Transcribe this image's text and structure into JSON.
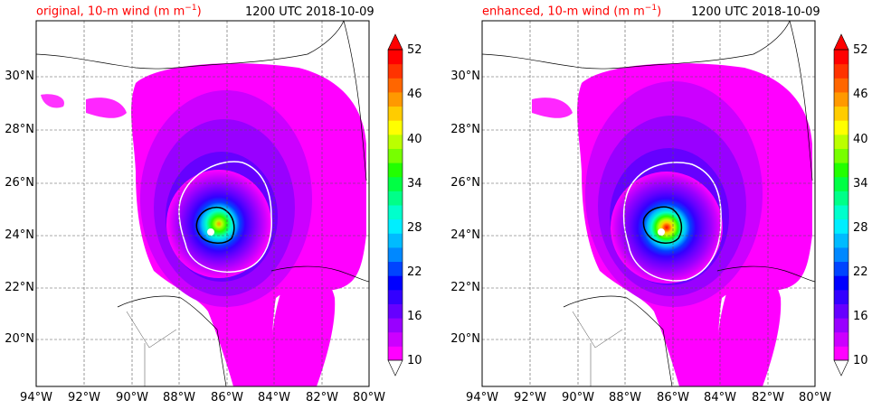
{
  "panels": [
    {
      "title": "original, 10-m wind (m m",
      "title_sup": "−1",
      "title_close": ")",
      "time": "1200 UTC 2018-10-09",
      "eye_intensity": 0.62
    },
    {
      "title": "enhanced, 10-m wind (m m",
      "title_sup": "−1",
      "title_close": ")",
      "time": "1200 UTC 2018-10-09",
      "eye_intensity": 1.0
    }
  ],
  "axes": {
    "lat_labels": [
      "30°N",
      "28°N",
      "26°N",
      "24°N",
      "22°N",
      "20°N"
    ],
    "lon_labels": [
      "94°W",
      "92°W",
      "90°W",
      "88°W",
      "86°W",
      "84°W",
      "82°W",
      "80°W"
    ],
    "lon_range": [
      -94,
      -80
    ],
    "lat_range": [
      18,
      32
    ]
  },
  "colorbar": {
    "ticks": [
      "52",
      "46",
      "40",
      "34",
      "28",
      "22",
      "16",
      "10"
    ],
    "colors": [
      "#ff00ff",
      "#cc00ff",
      "#9900ff",
      "#6600ff",
      "#3300ff",
      "#0000ff",
      "#0044ff",
      "#0088ff",
      "#00bbff",
      "#00eeff",
      "#00ffcc",
      "#00ff88",
      "#00ff44",
      "#22ff00",
      "#77ff00",
      "#bbff00",
      "#ffff00",
      "#ffcc00",
      "#ff9900",
      "#ff6600",
      "#ff3300",
      "#ff0000"
    ]
  }
}
